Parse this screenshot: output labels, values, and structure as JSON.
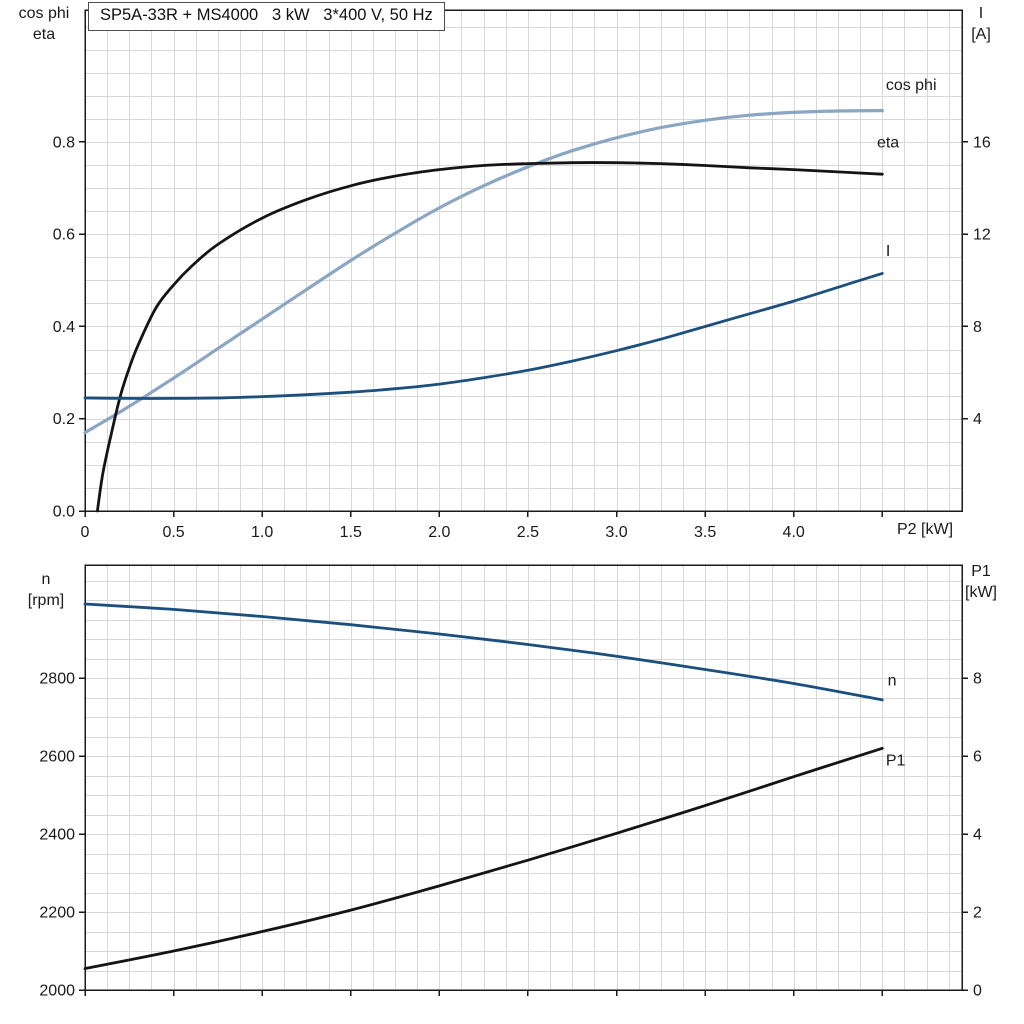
{
  "colors": {
    "axis": "#1a1a1a",
    "grid": "#d8d8d8",
    "black_curve": "#141414",
    "light_blue_curve": "#8aa6c3",
    "dark_blue_curve": "#1a4f7e"
  },
  "chart_data": [
    {
      "type": "line",
      "title": "SP5A-33R + MS4000   3 kW   3*400 V, 50 Hz",
      "x_axis": {
        "label": "P2 [kW]",
        "lim": [
          0,
          4.95
        ],
        "tick_values": [
          0,
          0.5,
          1,
          1.5,
          2,
          2.5,
          3,
          3.5,
          4,
          4.5
        ],
        "tick_labels": [
          "0",
          "0.5",
          "1.0",
          "1.5",
          "2.0",
          "2.5",
          "3.0",
          "3.5",
          "4.0",
          ""
        ],
        "minor_step": 0.125
      },
      "left_axis": {
        "label_lines": [
          "cos phi",
          "eta"
        ],
        "lim": [
          0,
          1.086
        ],
        "tick_values": [
          0,
          0.2,
          0.4,
          0.6,
          0.8
        ],
        "tick_labels": [
          "0.0",
          "0.2",
          "0.4",
          "0.6",
          "0.8"
        ],
        "minor_step": 0.05
      },
      "right_axis": {
        "label_lines": [
          "I",
          "[A]"
        ],
        "lim": [
          0,
          21.72
        ],
        "tick_values": [
          4,
          8,
          12,
          16
        ],
        "tick_labels": [
          "4",
          "8",
          "12",
          "16"
        ]
      },
      "grid": true,
      "series": [
        {
          "name": "cos phi",
          "axis": "left",
          "color": "#8aa6c3",
          "stroke_width": 3.2,
          "label_at": [
            4.52,
            0.925
          ],
          "points": [
            [
              0,
              0.17
            ],
            [
              0.25,
              0.227
            ],
            [
              0.5,
              0.288
            ],
            [
              0.75,
              0.352
            ],
            [
              1,
              0.416
            ],
            [
              1.25,
              0.48
            ],
            [
              1.5,
              0.543
            ],
            [
              1.75,
              0.602
            ],
            [
              2,
              0.657
            ],
            [
              2.25,
              0.705
            ],
            [
              2.5,
              0.746
            ],
            [
              2.75,
              0.781
            ],
            [
              3,
              0.809
            ],
            [
              3.25,
              0.831
            ],
            [
              3.5,
              0.847
            ],
            [
              3.75,
              0.858
            ],
            [
              4,
              0.864
            ],
            [
              4.25,
              0.867
            ],
            [
              4.5,
              0.868
            ]
          ]
        },
        {
          "name": "eta",
          "axis": "left",
          "color": "#141414",
          "stroke_width": 2.8,
          "label_at": [
            4.47,
            0.8
          ],
          "points": [
            [
              0.07,
              0
            ],
            [
              0.1,
              0.08
            ],
            [
              0.15,
              0.17
            ],
            [
              0.2,
              0.25
            ],
            [
              0.25,
              0.31
            ],
            [
              0.3,
              0.36
            ],
            [
              0.4,
              0.44
            ],
            [
              0.5,
              0.49
            ],
            [
              0.6,
              0.53
            ],
            [
              0.75,
              0.578
            ],
            [
              1,
              0.635
            ],
            [
              1.25,
              0.675
            ],
            [
              1.5,
              0.705
            ],
            [
              1.75,
              0.726
            ],
            [
              2,
              0.74
            ],
            [
              2.25,
              0.749
            ],
            [
              2.5,
              0.753
            ],
            [
              2.75,
              0.755
            ],
            [
              3,
              0.755
            ],
            [
              3.25,
              0.753
            ],
            [
              3.5,
              0.749
            ],
            [
              3.75,
              0.744
            ],
            [
              4,
              0.74
            ],
            [
              4.25,
              0.735
            ],
            [
              4.5,
              0.73
            ]
          ]
        },
        {
          "name": "I",
          "axis": "right",
          "color": "#1a4f7e",
          "stroke_width": 2.8,
          "label_at": [
            4.52,
            11.3
          ],
          "points": [
            [
              0,
              4.9
            ],
            [
              0.25,
              4.88
            ],
            [
              0.5,
              4.88
            ],
            [
              0.75,
              4.9
            ],
            [
              1,
              4.96
            ],
            [
              1.25,
              5.04
            ],
            [
              1.5,
              5.15
            ],
            [
              1.75,
              5.3
            ],
            [
              2,
              5.5
            ],
            [
              2.25,
              5.78
            ],
            [
              2.5,
              6.1
            ],
            [
              2.75,
              6.5
            ],
            [
              3,
              6.95
            ],
            [
              3.25,
              7.45
            ],
            [
              3.5,
              8
            ],
            [
              3.75,
              8.55
            ],
            [
              4,
              9.1
            ],
            [
              4.25,
              9.7
            ],
            [
              4.5,
              10.3
            ]
          ]
        }
      ]
    },
    {
      "type": "line",
      "x_axis": {
        "label": "",
        "lim": [
          0,
          4.95
        ],
        "tick_values": [
          0,
          0.5,
          1,
          1.5,
          2,
          2.5,
          3,
          3.5,
          4,
          4.5
        ],
        "tick_labels": [
          "",
          "",
          "",
          "",
          "",
          "",
          "",
          "",
          "",
          ""
        ],
        "minor_step": 0.125
      },
      "left_axis": {
        "label_lines": [
          "n",
          "[rpm]"
        ],
        "lim": [
          2000,
          3090
        ],
        "tick_values": [
          2000,
          2200,
          2400,
          2600,
          2800
        ],
        "tick_labels": [
          "2000",
          "2200",
          "2400",
          "2600",
          "2800"
        ],
        "minor_step": 50
      },
      "right_axis": {
        "label_lines": [
          "P1",
          "[kW]"
        ],
        "lim": [
          0,
          10.9
        ],
        "tick_values": [
          0,
          2,
          4,
          6,
          8
        ],
        "tick_labels": [
          "0",
          "2",
          "4",
          "6",
          "8"
        ]
      },
      "grid": true,
      "series": [
        {
          "name": "n",
          "axis": "left",
          "color": "#1a4f7e",
          "stroke_width": 2.8,
          "label_at": [
            4.53,
            2795
          ],
          "points": [
            [
              0,
              2990
            ],
            [
              0.5,
              2976
            ],
            [
              1,
              2958
            ],
            [
              1.5,
              2937
            ],
            [
              2,
              2913
            ],
            [
              2.5,
              2886
            ],
            [
              3,
              2856
            ],
            [
              3.5,
              2822
            ],
            [
              4,
              2786
            ],
            [
              4.5,
              2744
            ]
          ]
        },
        {
          "name": "P1",
          "axis": "right",
          "color": "#141414",
          "stroke_width": 2.8,
          "label_at": [
            4.52,
            5.9
          ],
          "points": [
            [
              0,
              0.55
            ],
            [
              0.5,
              1.0
            ],
            [
              1,
              1.5
            ],
            [
              1.5,
              2.05
            ],
            [
              2,
              2.67
            ],
            [
              2.5,
              3.33
            ],
            [
              3,
              4.02
            ],
            [
              3.5,
              4.73
            ],
            [
              4,
              5.47
            ],
            [
              4.5,
              6.2
            ]
          ]
        }
      ]
    }
  ]
}
